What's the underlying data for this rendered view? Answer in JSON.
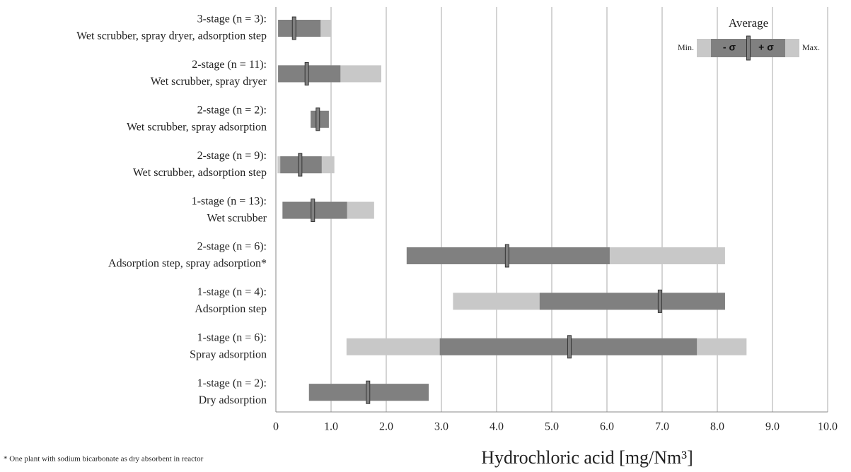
{
  "chart_data": {
    "type": "range",
    "categories": [
      [
        "3-stage (n = 3):",
        "Wet scrubber, spray dryer, adsorption step"
      ],
      [
        "2-stage (n = 11):",
        "Wet scrubber, spray dryer"
      ],
      [
        "2-stage (n = 2):",
        "Wet scrubber, spray adsorption"
      ],
      [
        "2-stage (n = 9):",
        "Wet scrubber, adsorption step"
      ],
      [
        "1-stage (n = 13):",
        "Wet scrubber"
      ],
      [
        "2-stage (n = 6):",
        "Adsorption step, spray adsorption*"
      ],
      [
        "1-stage (n = 4):",
        "Adsorption step"
      ],
      [
        "1-stage (n = 6):",
        "Spray adsorption"
      ],
      [
        "1-stage (n = 2):",
        "Dry adsorption"
      ]
    ],
    "series": [
      {
        "name": "Min.",
        "color": "#c8c8c8",
        "values": [
          0.04,
          0.04,
          0.63,
          0.03,
          0.12,
          2.37,
          3.21,
          1.28,
          0.6
        ]
      },
      {
        "name": "- σ",
        "color": "#808080",
        "values": [
          0.04,
          0.04,
          0.63,
          0.08,
          0.12,
          2.37,
          4.78,
          2.97,
          0.6
        ]
      },
      {
        "name": "Average",
        "color": "#808080",
        "values": [
          0.33,
          0.56,
          0.76,
          0.44,
          0.67,
          4.19,
          6.96,
          5.32,
          1.67
        ]
      },
      {
        "name": "+ σ",
        "color": "#808080",
        "values": [
          0.81,
          1.17,
          0.96,
          0.83,
          1.29,
          6.05,
          8.14,
          7.63,
          2.77
        ]
      },
      {
        "name": "Max.",
        "color": "#c8c8c8",
        "values": [
          0.99,
          1.91,
          0.96,
          1.06,
          1.78,
          8.14,
          8.14,
          8.53,
          2.77
        ]
      }
    ],
    "xlabel": "Hydrochloric acid [mg/Nm³]",
    "xlim": [
      0,
      10
    ],
    "xticks": [
      0,
      {
        "value": 1,
        "label": "1.0"
      },
      {
        "value": 2,
        "label": "2.0"
      },
      {
        "value": 3,
        "label": "3.0"
      },
      {
        "value": 4,
        "label": "4.0"
      },
      {
        "value": 5,
        "label": "5.0"
      },
      {
        "value": 6,
        "label": "6.0"
      },
      {
        "value": 7,
        "label": "7.0"
      },
      {
        "value": 8,
        "label": "8.0"
      },
      {
        "value": 9,
        "label": "9.0"
      },
      {
        "value": 10,
        "label": "10.0"
      }
    ],
    "grid": true,
    "legend": "top-right",
    "footnote": "* One plant with sodium bicarbonate as dry absorbent in reactor"
  }
}
